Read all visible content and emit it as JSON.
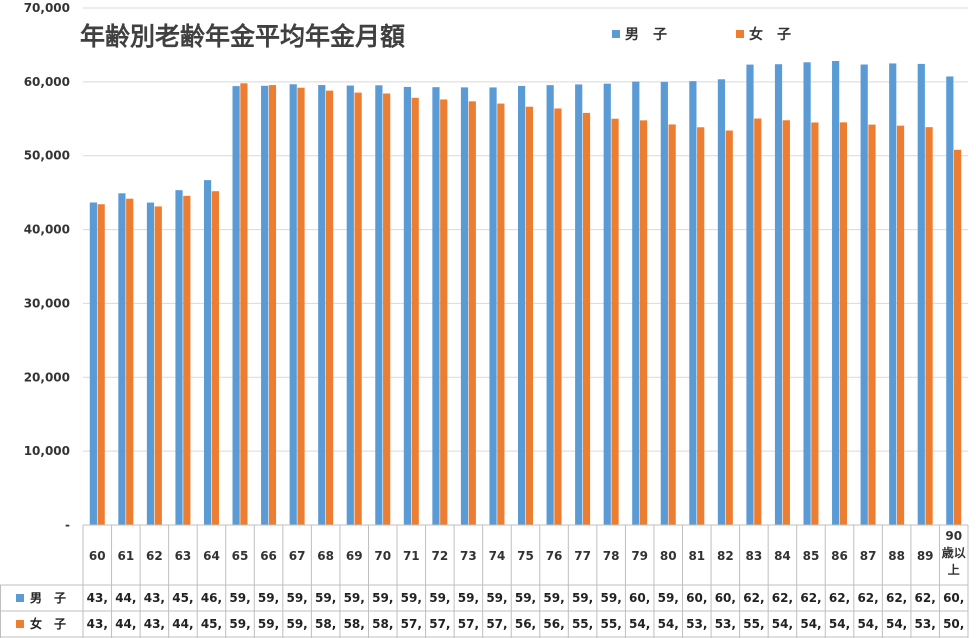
{
  "chart_data": {
    "type": "bar",
    "title": "年齢別老齢年金平均年金月額",
    "categories": [
      "60",
      "61",
      "62",
      "63",
      "64",
      "65",
      "66",
      "67",
      "68",
      "69",
      "70",
      "71",
      "72",
      "73",
      "74",
      "75",
      "76",
      "77",
      "78",
      "79",
      "80",
      "81",
      "82",
      "83",
      "84",
      "85",
      "86",
      "87",
      "88",
      "89",
      "90歳以上"
    ],
    "series": [
      {
        "name": "男　子",
        "color": "#5B9BD5",
        "values": [
          43666,
          44909,
          43654,
          45336,
          46694,
          59426,
          59464,
          59676,
          59567,
          59503,
          59536,
          59310,
          59279,
          59252,
          59246,
          59447,
          59554,
          59653,
          59752,
          60034,
          59997,
          60096,
          60349,
          62336,
          62389,
          62650,
          62823,
          62348,
          62495,
          62430,
          60731
        ],
        "table_values": [
          "43,",
          "44,",
          "43,",
          "45,",
          "46,",
          "59,",
          "59,",
          "59,",
          "59,",
          "59,",
          "59,",
          "59,",
          "59,",
          "59,",
          "59,",
          "59,",
          "59,",
          "59,",
          "59,",
          "60,",
          "59,",
          "60,",
          "60,",
          "62,",
          "62,",
          "62,",
          "62,",
          "62,",
          "62,",
          "62,",
          "60,"
        ]
      },
      {
        "name": "女　子",
        "color": "#ED7D31",
        "values": [
          43427,
          44182,
          43132,
          44568,
          45194,
          59802,
          59562,
          59208,
          58807,
          58546,
          58424,
          57846,
          57618,
          57365,
          57060,
          56635,
          56398,
          55797,
          55011,
          54788,
          54235,
          53853,
          53415,
          55033,
          54799,
          54497,
          54518,
          54214,
          54069,
          53868,
          50805
        ],
        "table_values": [
          "43,",
          "44,",
          "43,",
          "44,",
          "45,",
          "59,",
          "59,",
          "59,",
          "58,",
          "58,",
          "58,",
          "57,",
          "57,",
          "57,",
          "57,",
          "56,",
          "56,",
          "55,",
          "55,",
          "54,",
          "54,",
          "53,",
          "53,",
          "55,",
          "54,",
          "54,",
          "54,",
          "54,",
          "54,",
          "53,",
          "50,"
        ]
      }
    ],
    "y_ticks": [
      "-",
      "10,000",
      "20,000",
      "30,000",
      "40,000",
      "50,000",
      "60,000",
      "70,000"
    ],
    "ylim": [
      0,
      70000
    ],
    "legend_position": "top-right",
    "grid": true
  }
}
